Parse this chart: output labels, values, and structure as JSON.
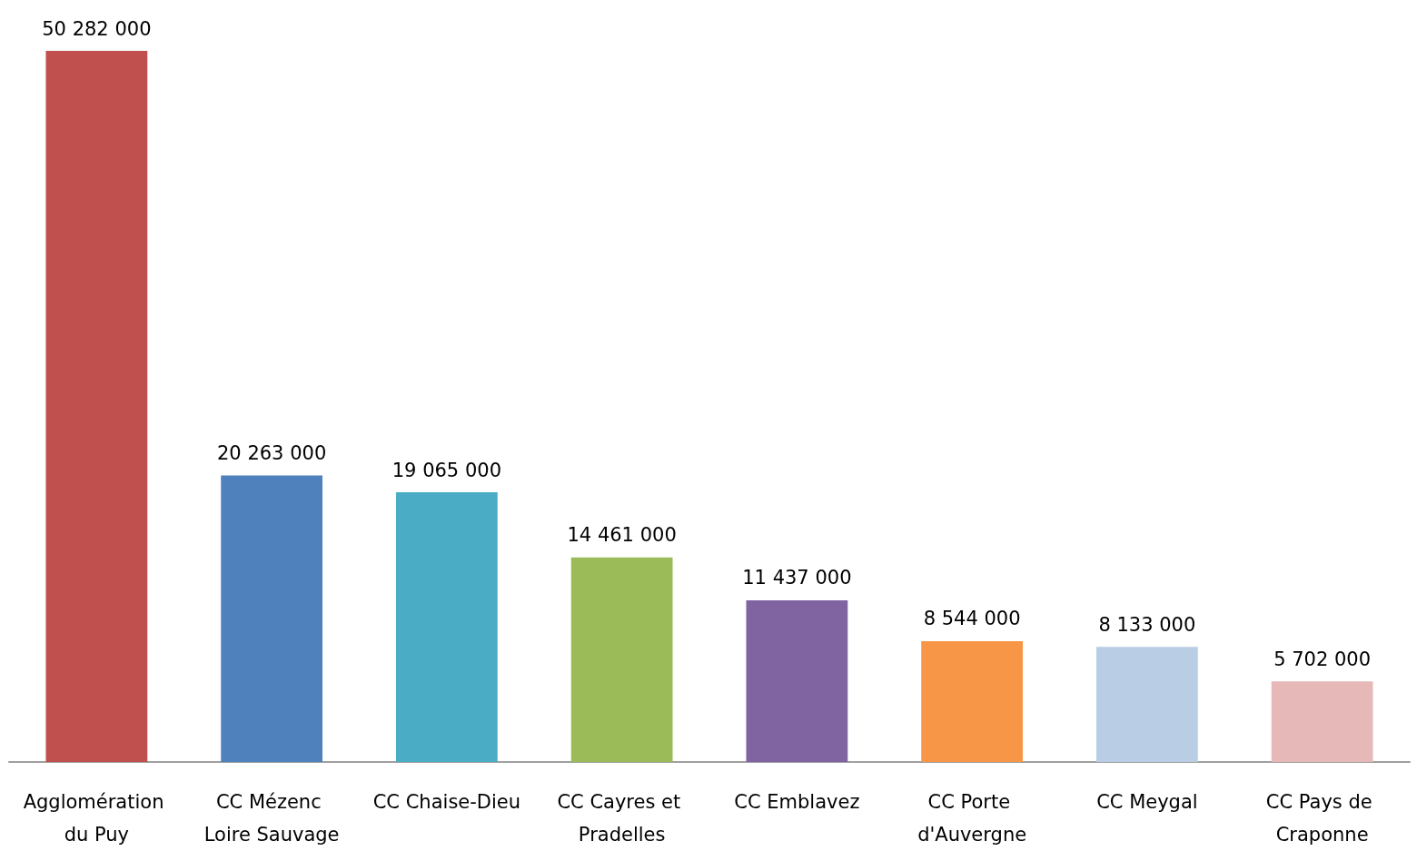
{
  "chart_data": {
    "type": "bar",
    "categories": [
      "Agglomération du Puy",
      "CC Mézenc Loire Sauvage",
      "CC Chaise-Dieu",
      "CC Cayres et Pradelles",
      "CC Emblavez",
      "CC Porte d'Auvergne",
      "CC Meygal",
      "CC Pays de Craponne"
    ],
    "values": [
      50282000,
      20263000,
      19065000,
      14461000,
      11437000,
      8544000,
      8133000,
      5702000
    ],
    "colors": [
      "#c0504d",
      "#4f81bd",
      "#4bacc6",
      "#9bbb59",
      "#8064a2",
      "#f79646",
      "#b9cde5",
      "#e6b9b8"
    ],
    "value_labels": [
      "50 282 000",
      "20 263 000",
      "19 065 000",
      "14 461 000",
      "11 437 000",
      "8 544 000",
      "8 133 000",
      "5 702 000"
    ],
    "tick_labels": "x"
  }
}
